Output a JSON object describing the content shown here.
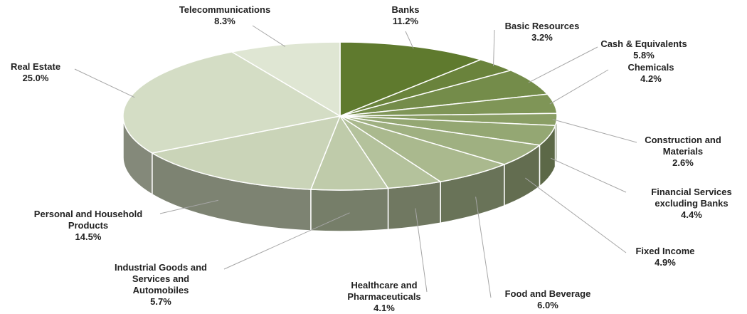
{
  "chart_data": {
    "type": "pie",
    "title": "",
    "style": "3d-exploded-pie",
    "colors": {
      "top_start": "#5f7a2e",
      "top_end": "#dfe6d3",
      "leader": "#a6a6a6",
      "text": "#222222",
      "divider": "#ffffff"
    },
    "slices": [
      {
        "label_lines": [
          "Banks"
        ],
        "value": 11.2,
        "pct_label": "11.2%"
      },
      {
        "label_lines": [
          "Basic Resources"
        ],
        "value": 3.2,
        "pct_label": "3.2%"
      },
      {
        "label_lines": [
          "Cash &  Equivalents"
        ],
        "value": 5.8,
        "pct_label": "5.8%"
      },
      {
        "label_lines": [
          "Chemicals"
        ],
        "value": 4.2,
        "pct_label": "4.2%"
      },
      {
        "label_lines": [
          "Construction and",
          "Materials"
        ],
        "value": 2.6,
        "pct_label": "2.6%"
      },
      {
        "label_lines": [
          "Financial Services",
          "excluding Banks"
        ],
        "value": 4.4,
        "pct_label": "4.4%"
      },
      {
        "label_lines": [
          "Fixed Income"
        ],
        "value": 4.9,
        "pct_label": "4.9%"
      },
      {
        "label_lines": [
          "Food and Beverage"
        ],
        "value": 6.0,
        "pct_label": "6.0%"
      },
      {
        "label_lines": [
          "Healthcare and",
          "Pharmaceuticals"
        ],
        "value": 4.1,
        "pct_label": "4.1%"
      },
      {
        "label_lines": [
          "Industrial Goods and",
          "Services and",
          "Automobiles"
        ],
        "value": 5.7,
        "pct_label": "5.7%"
      },
      {
        "label_lines": [
          "Personal and Household",
          "Products"
        ],
        "value": 14.5,
        "pct_label": "14.5%"
      },
      {
        "label_lines": [
          "Real Estate"
        ],
        "value": 25.0,
        "pct_label": "25.0%"
      },
      {
        "label_lines": [
          "Telecommunications"
        ],
        "value": 8.3,
        "pct_label": "8.3%"
      }
    ]
  }
}
